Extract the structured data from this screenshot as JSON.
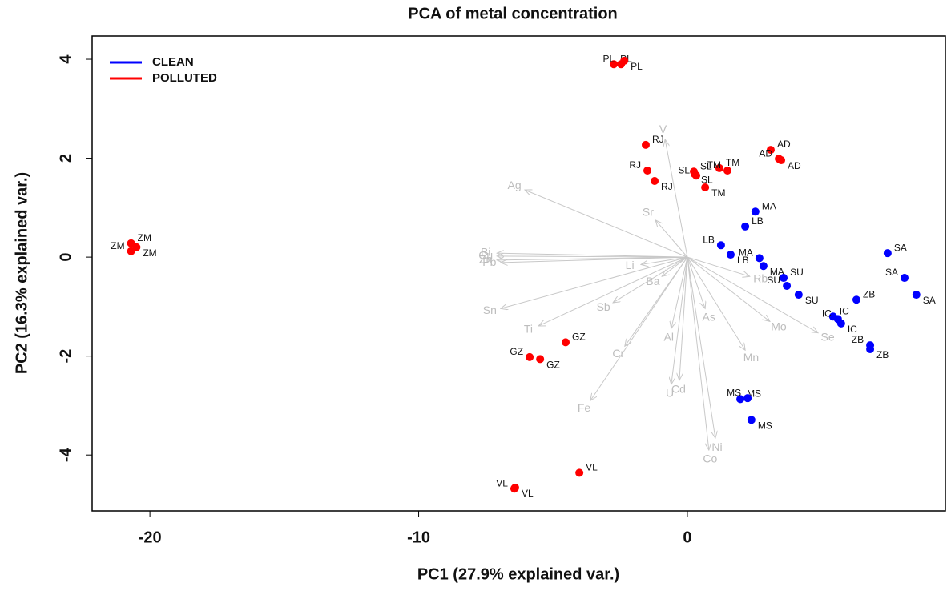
{
  "chart_data": {
    "type": "biplot",
    "title": "PCA of metal concentration",
    "x_label": "PC1 (27.9% explained var.)",
    "y_label": "PC2 (16.3% explained var.)",
    "xlim": [
      -22.15,
      9.6
    ],
    "ylim": [
      -5.13,
      4.47
    ],
    "xticks": [
      -20,
      -10,
      0
    ],
    "yticks": [
      -4,
      -2,
      0,
      2,
      4
    ],
    "legend": "upper left",
    "series": [
      {
        "name": "CLEAN",
        "color": "#0000ff",
        "labels": [
          "MA",
          "MA",
          "MA",
          "LB",
          "LB",
          "LB",
          "SU",
          "SU",
          "SU",
          "SA",
          "SA",
          "SA",
          "ZB",
          "ZB",
          "ZB",
          "IC",
          "IC",
          "IC",
          "MS",
          "MS",
          "MS"
        ],
        "x": [
          2.53,
          2.68,
          2.83,
          2.15,
          1.25,
          1.61,
          3.58,
          3.7,
          4.14,
          7.45,
          8.08,
          8.52,
          6.29,
          6.8,
          6.8,
          5.42,
          5.6,
          5.72,
          1.97,
          2.24,
          2.38
        ],
        "values": [
          0.92,
          -0.02,
          -0.18,
          0.62,
          0.24,
          0.05,
          -0.42,
          -0.58,
          -0.76,
          0.08,
          -0.42,
          -0.76,
          -0.86,
          -1.78,
          -1.86,
          -1.2,
          -1.25,
          -1.34,
          -2.87,
          -2.85,
          -3.29
        ]
      },
      {
        "name": "POLLUTED",
        "color": "#ff0000",
        "labels": [
          "ZM",
          "ZM",
          "ZM",
          "PL",
          "PL",
          "PL",
          "RJ",
          "RJ",
          "RJ",
          "SL",
          "SL",
          "SL",
          "TM",
          "TM",
          "TM",
          "AD",
          "AD",
          "AD",
          "GZ",
          "GZ",
          "GZ",
          "VL",
          "VL",
          "VL"
        ],
        "x": [
          -20.7,
          -20.7,
          -20.5,
          -2.74,
          -2.47,
          -2.35,
          -1.55,
          -1.49,
          -1.22,
          0.24,
          0.33,
          0.27,
          1.19,
          1.49,
          0.66,
          3.1,
          3.4,
          3.49,
          -4.53,
          -5.87,
          -5.48,
          -4.02,
          -6.44,
          -6.41
        ],
        "values": [
          0.28,
          0.12,
          0.2,
          3.9,
          3.9,
          3.97,
          2.27,
          1.75,
          1.54,
          1.73,
          1.65,
          1.68,
          1.8,
          1.75,
          1.41,
          2.17,
          1.99,
          1.96,
          -1.72,
          -2.02,
          -2.06,
          -4.36,
          -4.68,
          -4.66
        ]
      }
    ],
    "loadings": [
      {
        "name": "V",
        "x": -0.83,
        "y": 2.38
      },
      {
        "name": "Ag",
        "x": -6.05,
        "y": 1.36
      },
      {
        "name": "Sr",
        "x": -1.19,
        "y": 0.75
      },
      {
        "name": "Bi",
        "x": -7.09,
        "y": 0.08
      },
      {
        "name": "Cu",
        "x": -7.09,
        "y": 0.02
      },
      {
        "name": "Zn",
        "x": -7.09,
        "y": -0.06
      },
      {
        "name": "Pb",
        "x": -6.95,
        "y": -0.11
      },
      {
        "name": "Sn",
        "x": -6.95,
        "y": -1.04
      },
      {
        "name": "Li",
        "x": -1.73,
        "y": -0.15
      },
      {
        "name": "Ba",
        "x": -0.95,
        "y": -0.39
      },
      {
        "name": "Sb",
        "x": -2.77,
        "y": -0.92
      },
      {
        "name": "Ti",
        "x": -5.54,
        "y": -1.39
      },
      {
        "name": "Cr",
        "x": -2.33,
        "y": -1.8
      },
      {
        "name": "Al",
        "x": -0.6,
        "y": -1.44
      },
      {
        "name": "Cd",
        "x": -0.3,
        "y": -2.49
      },
      {
        "name": "U",
        "x": -0.6,
        "y": -2.57
      },
      {
        "name": "Fe",
        "x": -3.61,
        "y": -2.9
      },
      {
        "name": "Co",
        "x": 0.8,
        "y": -3.9
      },
      {
        "name": "Ni",
        "x": 1.04,
        "y": -3.66
      },
      {
        "name": "Mn",
        "x": 2.15,
        "y": -1.88
      },
      {
        "name": "As",
        "x": 0.66,
        "y": -1.04
      },
      {
        "name": "Rb",
        "x": 2.32,
        "y": -0.39
      },
      {
        "name": "Mo",
        "x": 3.07,
        "y": -1.3
      },
      {
        "name": "Se",
        "x": 4.86,
        "y": -1.53
      }
    ]
  }
}
